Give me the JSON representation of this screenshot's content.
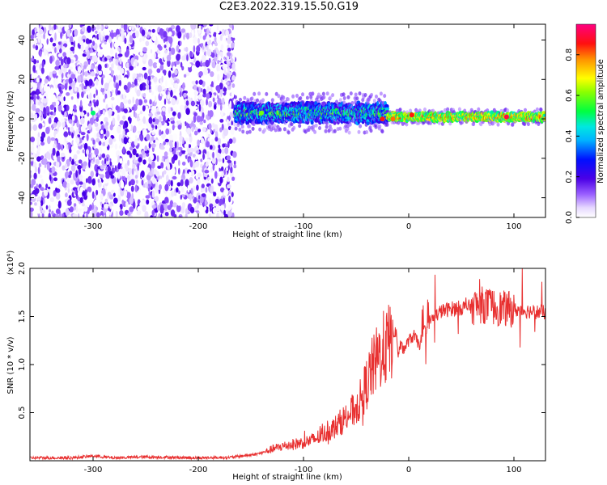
{
  "figure": {
    "title": "C2E3.2022.319.15.50.G19"
  },
  "chart_data": [
    {
      "type": "heatmap",
      "title": "",
      "xlabel": "Height of straight line (km)",
      "ylabel": "Frequency (Hz)",
      "xlim": [
        -360,
        130
      ],
      "ylim": [
        -50,
        48
      ],
      "xticks": [
        -300,
        -200,
        -100,
        0,
        100
      ],
      "yticks": [
        -40,
        -20,
        0,
        20,
        40
      ],
      "colorbar": {
        "label": "Normalized spectral amplitude",
        "range": [
          0,
          0.95
        ],
        "ticks": [
          0.0,
          0.2,
          0.4,
          0.6,
          0.8
        ],
        "colormap": "rainbow (white-purple-blue-cyan-green-yellow-red-pink)"
      },
      "regions": [
        {
          "x": [
            -360,
            -165
          ],
          "freq_spread": [
            -50,
            48
          ],
          "amplitude": [
            0.0,
            0.2
          ],
          "pattern": "noise"
        },
        {
          "x": [
            -165,
            -20
          ],
          "freq_center": 3,
          "freq_halfwidth": 5,
          "amplitude": [
            0.15,
            0.6
          ],
          "pattern": "noisy-band"
        },
        {
          "x": [
            -20,
            130
          ],
          "freq_center": 1,
          "freq_halfwidth": 2,
          "amplitude": [
            0.45,
            0.9
          ],
          "pattern": "stable-band"
        }
      ],
      "hotspots": [
        {
          "x": -300,
          "freq": 3,
          "amplitude": 0.5
        },
        {
          "x": -140,
          "freq": 3,
          "amplitude": 0.6
        },
        {
          "x": -25,
          "freq": 0,
          "amplitude": 0.85
        },
        {
          "x": -15,
          "freq": 0,
          "amplitude": 0.8
        },
        {
          "x": 3,
          "freq": 2,
          "amplitude": 0.85
        },
        {
          "x": 93,
          "freq": 1,
          "amplitude": 0.9
        }
      ]
    },
    {
      "type": "line",
      "title": "",
      "xlabel": "Height of straight line (km)",
      "ylabel": "SNR (10 * v/v)",
      "y_multiplier": "(x10⁴)",
      "xlim": [
        -360,
        130
      ],
      "ylim": [
        0,
        20000
      ],
      "xticks": [
        -300,
        -200,
        -100,
        0,
        100
      ],
      "yticks": [
        5000,
        10000,
        15000,
        20000
      ],
      "ytick_labels": [
        "0.5",
        "1.0",
        "1.5",
        "2.0"
      ],
      "series": [
        {
          "color": "#e83030",
          "x": [
            -360,
            -320,
            -300,
            -280,
            -250,
            -200,
            -170,
            -150,
            -140,
            -130,
            -120,
            -110,
            -100,
            -90,
            -80,
            -70,
            -60,
            -50,
            -45,
            -40,
            -35,
            -30,
            -25,
            -20,
            -15,
            -12,
            -10,
            -8,
            -5,
            0,
            5,
            10,
            15,
            20,
            25,
            30,
            40,
            50,
            60,
            70,
            80,
            90,
            100,
            110,
            120,
            130
          ],
          "y": [
            300,
            300,
            500,
            300,
            400,
            300,
            350,
            600,
            800,
            1200,
            1500,
            1700,
            1900,
            2200,
            2800,
            3500,
            4500,
            5500,
            6500,
            8000,
            9500,
            10500,
            11500,
            12000,
            13000,
            13500,
            11000,
            12000,
            11500,
            12500,
            13000,
            12000,
            13500,
            14500,
            15000,
            15500,
            15800,
            15900,
            16000,
            16200,
            16000,
            15800,
            15700,
            15600,
            15500,
            15400
          ]
        }
      ]
    }
  ]
}
